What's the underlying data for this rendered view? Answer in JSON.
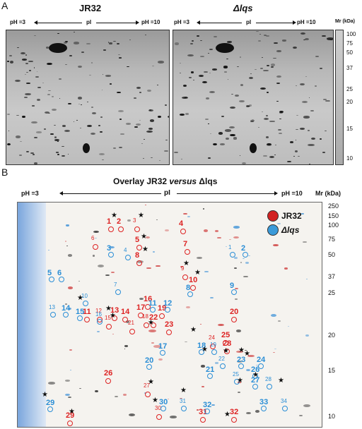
{
  "panel_a": {
    "letter": "A",
    "left_title": "JR32",
    "right_title": "Δlqs",
    "ph_left": "pH =3",
    "pi": "pI",
    "ph_right": "pH =10",
    "mr_header": "Mr (kDa)",
    "mr_values": [
      "100",
      "75",
      "50",
      "37",
      "25",
      "20",
      "15",
      "10"
    ]
  },
  "panel_b": {
    "letter": "B",
    "title_prefix": "Overlay JR32 ",
    "title_versus": "versus",
    "title_suffix": " Δlqs",
    "ph_left": "pH =3",
    "pi": "pI",
    "ph_right": "pH =10",
    "mr_header": "Mr (kDa)",
    "mr_values": [
      "250",
      "150",
      "100",
      "75",
      "50",
      "37",
      "25",
      "20",
      "15",
      "10"
    ],
    "legend": [
      {
        "label": "JR32",
        "color": "#d22222"
      },
      {
        "label": "Δlqs",
        "color": "#3a9ad9"
      }
    ],
    "red_spots": [
      "1",
      "2",
      "3",
      "4",
      "5",
      "6",
      "7",
      "8",
      "9",
      "10",
      "11",
      "12",
      "13",
      "14",
      "15",
      "16",
      "17",
      "18",
      "19",
      "20",
      "21",
      "22",
      "23",
      "24",
      "25",
      "26",
      "27",
      "28",
      "29",
      "30",
      "31",
      "32"
    ],
    "blue_spots": [
      "1",
      "2",
      "3",
      "4",
      "5",
      "6",
      "7",
      "8",
      "9",
      "10",
      "11",
      "12",
      "13",
      "14",
      "15",
      "16",
      "17",
      "18",
      "19",
      "20",
      "21",
      "22",
      "23",
      "24",
      "25",
      "26",
      "27",
      "28",
      "29",
      "30",
      "31",
      "32",
      "33",
      "34"
    ]
  }
}
